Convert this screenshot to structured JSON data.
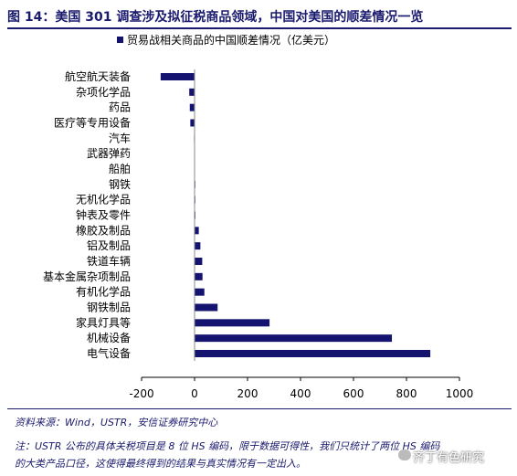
{
  "figure": {
    "title": "图 14：美国 301 调查涉及拟征税商品领域，中国对美国的顺差情况一览",
    "source": "资料来源：Wind，USTR，安信证券研究中心",
    "note_line1": "注：USTR 公布的具体关税项目是 8 位 HS 编码，限于数据可得性，我们只统计了两位 HS 编码",
    "note_line2": "的大类产品口径，这使得最终得到的结果与真实情况有一定出入。",
    "watermark": "齐丁有色研究"
  },
  "chart_data": {
    "type": "bar",
    "orientation": "horizontal",
    "legend": "贸易战相关商品的中国顺差情况（亿美元）",
    "categories": [
      "航空航天装备",
      "杂项化学品",
      "药品",
      "医疗等专用设备",
      "汽车",
      "武器弹药",
      "船舶",
      "钢铁",
      "无机化学品",
      "钟表及零件",
      "橡胶及制品",
      "铝及制品",
      "铁道车辆",
      "基本金属杂项制品",
      "有机化学品",
      "钢铁制品",
      "家具灯具等",
      "机械设备",
      "电气设备"
    ],
    "values": [
      -128,
      -20,
      -18,
      -16,
      -2,
      -1,
      -1,
      1,
      2,
      3,
      16,
      22,
      29,
      30,
      37,
      87,
      283,
      745,
      890
    ],
    "xlim": [
      -200,
      1000
    ],
    "xticks": [
      "-200",
      "0",
      "200",
      "400",
      "600",
      "800",
      "1000"
    ],
    "xtick_values": [
      -200,
      0,
      200,
      400,
      600,
      800,
      1000
    ],
    "bar_color": "#141470",
    "grid": false
  }
}
